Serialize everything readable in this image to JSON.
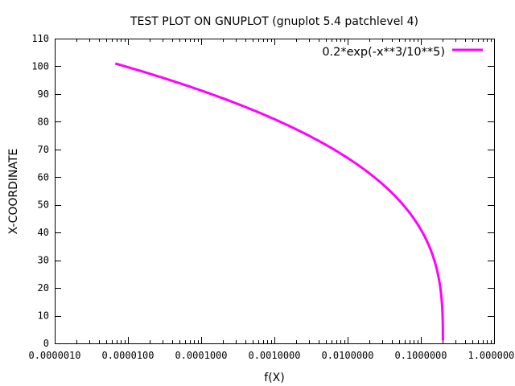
{
  "chart_data": {
    "type": "line",
    "title": "TEST PLOT ON GNUPLOT (gnuplot 5.4 patchlevel 4)",
    "xlabel": "f(X)",
    "ylabel": "X-COORDINATE",
    "x_scale": "log",
    "xlim": [
      1e-06,
      1.0
    ],
    "ylim": [
      0,
      110
    ],
    "x_ticks": [
      "0.0000010",
      "0.0000100",
      "0.0001000",
      "0.0010000",
      "0.0100000",
      "0.1000000",
      "1.0000000"
    ],
    "y_ticks": [
      "0",
      "10",
      "20",
      "30",
      "40",
      "50",
      "60",
      "70",
      "80",
      "90",
      "100",
      "110"
    ],
    "grid": false,
    "legend_position": "top-right",
    "series": [
      {
        "name": "0.2*exp(-x**3/10**5)",
        "color": "#ff00ff",
        "expression": {
          "a": 0.2,
          "k": 100000,
          "y_min": 1,
          "y_max": 101
        }
      }
    ]
  }
}
